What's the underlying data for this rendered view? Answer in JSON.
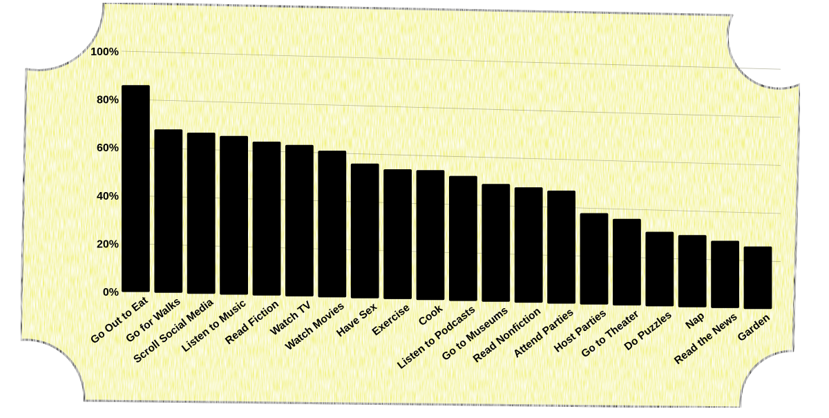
{
  "colors": {
    "background": "#f2f27a",
    "bar": "#000000",
    "border": "#000000"
  },
  "chart_data": {
    "type": "bar",
    "title": "",
    "xlabel": "",
    "ylabel": "",
    "ylim": [
      0,
      100
    ],
    "grid": true,
    "yticks": [
      "0%",
      "20%",
      "40%",
      "60%",
      "80%",
      "100%"
    ],
    "categories": [
      "Go Out to Eat",
      "Go for Walks",
      "Scroll Social Media",
      "Listen to Music",
      "Read Fiction",
      "Watch TV",
      "Watch Movies",
      "Have Sex",
      "Exercise",
      "Cook",
      "Listen to Podcasts",
      "Go to Museums",
      "Read Nonfiction",
      "Attend Parties",
      "Host Parties",
      "Go to Theater",
      "Do Puzzles",
      "Nap",
      "Read the News",
      "Garden"
    ],
    "values": [
      86,
      68,
      67,
      66,
      64,
      63,
      61,
      56,
      54,
      54,
      52,
      49,
      48,
      47,
      38,
      36,
      31,
      30,
      28,
      26
    ]
  }
}
